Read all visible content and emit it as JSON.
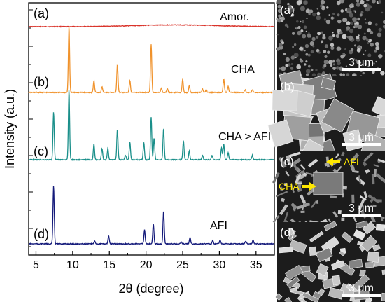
{
  "chart_data": {
    "type": "line",
    "title": "",
    "xlabel": "2θ (degree)",
    "ylabel": "Intensity (a.u.)",
    "xlim": [
      4,
      37.5
    ],
    "xticks": [
      5,
      10,
      15,
      20,
      25,
      30,
      35
    ],
    "grid": false,
    "legend": "none",
    "series": [
      {
        "letter": "(a)",
        "name": "Amor.",
        "color": "#d9332a",
        "peaks": []
      },
      {
        "letter": "(b)",
        "name": "CHA",
        "color": "#f0922b",
        "peaks": [
          [
            9.5,
            1.0
          ],
          [
            12.9,
            0.18
          ],
          [
            14.0,
            0.09
          ],
          [
            16.1,
            0.42
          ],
          [
            17.8,
            0.18
          ],
          [
            20.7,
            0.73
          ],
          [
            22.1,
            0.07
          ],
          [
            22.9,
            0.06
          ],
          [
            25.0,
            0.2
          ],
          [
            25.9,
            0.1
          ],
          [
            27.7,
            0.05
          ],
          [
            28.2,
            0.05
          ],
          [
            30.6,
            0.2
          ],
          [
            31.2,
            0.09
          ],
          [
            33.5,
            0.04
          ],
          [
            34.5,
            0.04
          ]
        ]
      },
      {
        "letter": "(c)",
        "name": "CHA > AFI",
        "color": "#1a8f8a",
        "peaks": [
          [
            7.4,
            0.55
          ],
          [
            9.5,
            0.8
          ],
          [
            12.9,
            0.18
          ],
          [
            14.0,
            0.13
          ],
          [
            14.8,
            0.13
          ],
          [
            16.1,
            0.35
          ],
          [
            17.2,
            0.05
          ],
          [
            17.8,
            0.2
          ],
          [
            19.7,
            0.2
          ],
          [
            20.7,
            0.49
          ],
          [
            21.1,
            0.25
          ],
          [
            22.4,
            0.36
          ],
          [
            25.1,
            0.22
          ],
          [
            25.9,
            0.1
          ],
          [
            27.7,
            0.05
          ],
          [
            29.0,
            0.05
          ],
          [
            30.3,
            0.14
          ],
          [
            30.6,
            0.18
          ],
          [
            31.2,
            0.08
          ],
          [
            34.5,
            0.05
          ]
        ]
      },
      {
        "letter": "(d)",
        "name": "AFI",
        "color": "#141a7a",
        "peaks": [
          [
            7.4,
            0.92
          ],
          [
            13.0,
            0.05
          ],
          [
            14.9,
            0.13
          ],
          [
            19.8,
            0.22
          ],
          [
            21.0,
            0.32
          ],
          [
            22.4,
            0.52
          ],
          [
            24.8,
            0.03
          ],
          [
            26.0,
            0.1
          ],
          [
            29.1,
            0.05
          ],
          [
            30.1,
            0.06
          ],
          [
            33.6,
            0.04
          ],
          [
            34.6,
            0.06
          ]
        ]
      }
    ]
  },
  "sem_panels": [
    {
      "letter": "(a)",
      "scale": "3 μm"
    },
    {
      "letter": "(b)",
      "scale": "3 μm"
    },
    {
      "letter": "(c)",
      "scale": "3 μm",
      "annotations": [
        "AFI",
        "CHA"
      ]
    },
    {
      "letter": "(d)",
      "scale": "3 μm"
    }
  ]
}
